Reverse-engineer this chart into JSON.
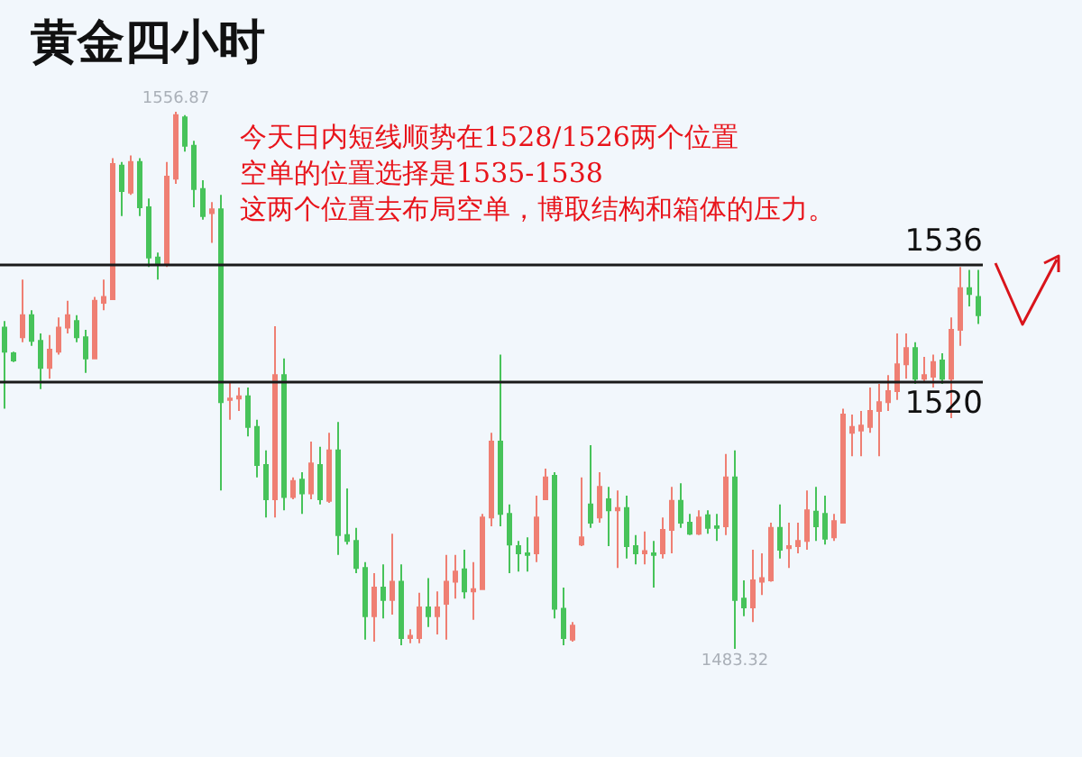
{
  "chart_data": {
    "type": "candlestick",
    "title": "黄金四小时",
    "categories": [
      null,
      null,
      null,
      null,
      null,
      null,
      null,
      null,
      null,
      null,
      null,
      null,
      null,
      null,
      null,
      null,
      null,
      null,
      null,
      null,
      null,
      null,
      null,
      null,
      null,
      null,
      null,
      null,
      null,
      null,
      null,
      null,
      null,
      null,
      null,
      null,
      null,
      null,
      null,
      null,
      null,
      null,
      null,
      null,
      null,
      null,
      null,
      null,
      null,
      null,
      null,
      null,
      null,
      null,
      null,
      null,
      null,
      null,
      null,
      null,
      null,
      null,
      null,
      null,
      null,
      null,
      null,
      null,
      null,
      null,
      null,
      null,
      null,
      null,
      null,
      null,
      null,
      null,
      null,
      null,
      null,
      null,
      null,
      null,
      null,
      null,
      null,
      null,
      null,
      null,
      null,
      null,
      null,
      null,
      null,
      null,
      null,
      null,
      null,
      null,
      null,
      null,
      null,
      null,
      null,
      null,
      null,
      null,
      null
    ],
    "ohlc": [
      [
        1527.3,
        1528.2,
        1516.2,
        1524.0
      ],
      [
        1523.8,
        1524.0,
        1522.6,
        1522.8
      ],
      [
        1526.0,
        1533.9,
        1525.3,
        1529.0
      ],
      [
        1529.0,
        1529.7,
        1524.8,
        1525.5
      ],
      [
        1525.5,
        1526.5,
        1518.9,
        1521.8
      ],
      [
        1521.8,
        1526.3,
        1520.3,
        1524.3
      ],
      [
        1524.0,
        1528.7,
        1523.6,
        1527.3
      ],
      [
        1527.3,
        1531.0,
        1526.5,
        1529.0
      ],
      [
        1528.2,
        1529.0,
        1525.3,
        1526.0
      ],
      [
        1526.0,
        1527.0,
        1521.1,
        1523.1
      ],
      [
        1523.1,
        1531.5,
        1523.1,
        1531.0
      ],
      [
        1530.7,
        1533.9,
        1529.7,
        1531.5
      ],
      [
        1531.2,
        1550.5,
        1531.2,
        1549.7
      ],
      [
        1549.5,
        1550.0,
        1542.6,
        1546.0
      ],
      [
        1545.8,
        1550.9,
        1545.5,
        1550.0
      ],
      [
        1550.0,
        1550.5,
        1542.6,
        1543.8
      ],
      [
        1543.8,
        1545.0,
        1535.6,
        1536.9
      ],
      [
        1536.9,
        1537.6,
        1533.9,
        1536.1
      ],
      [
        1536.1,
        1550.0,
        1535.6,
        1548.0
      ],
      [
        1547.7,
        1556.87,
        1547.0,
        1556.4
      ],
      [
        1556.1,
        1556.4,
        1551.4,
        1552.2
      ],
      [
        1552.2,
        1552.9,
        1543.8,
        1546.3
      ],
      [
        1546.3,
        1547.5,
        1542.1,
        1542.6
      ],
      [
        1543.0,
        1544.5,
        1538.9,
        1543.5
      ],
      [
        1543.5,
        1545.5,
        1505.0,
        1517.1
      ],
      [
        1517.4,
        1519.9,
        1514.7,
        1517.6
      ],
      [
        1517.6,
        1519.1,
        1515.9,
        1517.9
      ],
      [
        1517.9,
        1519.1,
        1512.4,
        1513.7
      ],
      [
        1513.7,
        1514.7,
        1506.8,
        1508.5
      ],
      [
        1508.5,
        1510.5,
        1501.3,
        1503.8
      ],
      [
        1503.8,
        1527.5,
        1501.3,
        1520.8
      ],
      [
        1520.8,
        1523.1,
        1502.3,
        1504.1
      ],
      [
        1504.1,
        1506.8,
        1503.8,
        1506.3
      ],
      [
        1506.5,
        1507.5,
        1501.8,
        1504.6
      ],
      [
        1504.6,
        1511.7,
        1503.8,
        1508.7
      ],
      [
        1508.5,
        1511.0,
        1503.1,
        1503.8
      ],
      [
        1503.6,
        1512.9,
        1503.3,
        1510.5
      ],
      [
        1510.5,
        1514.4,
        1496.2,
        1498.9
      ],
      [
        1498.9,
        1505.3,
        1497.6,
        1498.1
      ],
      [
        1498.1,
        1499.9,
        1493.7,
        1494.4
      ],
      [
        1494.4,
        1495.2,
        1484.6,
        1487.8
      ],
      [
        1487.8,
        1493.7,
        1484.3,
        1491.7
      ],
      [
        1491.7,
        1494.9,
        1487.5,
        1490.0
      ],
      [
        1490.0,
        1499.1,
        1488.0,
        1492.5
      ],
      [
        1492.5,
        1494.9,
        1483.8,
        1484.8
      ],
      [
        1484.8,
        1486.0,
        1484.1,
        1485.1
      ],
      [
        1484.8,
        1491.0,
        1484.1,
        1489.0
      ],
      [
        1489.0,
        1493.0,
        1486.3,
        1487.8
      ],
      [
        1487.8,
        1491.2,
        1485.3,
        1489.0
      ],
      [
        1489.5,
        1496.2,
        1484.6,
        1492.5
      ],
      [
        1492.5,
        1496.2,
        1490.2,
        1493.9
      ],
      [
        1494.2,
        1496.9,
        1490.2,
        1491.2
      ],
      [
        1491.2,
        1495.2,
        1487.3,
        1491.5
      ],
      [
        1491.5,
        1501.8,
        1491.5,
        1501.3
      ],
      [
        1501.3,
        1512.9,
        1500.1,
        1511.7
      ],
      [
        1511.7,
        1523.6,
        1500.1,
        1501.8
      ],
      [
        1501.8,
        1503.1,
        1493.7,
        1497.6
      ],
      [
        1497.4,
        1498.1,
        1493.9,
        1496.4
      ],
      [
        1496.4,
        1498.6,
        1493.9,
        1496.2
      ],
      [
        1496.4,
        1504.3,
        1495.2,
        1501.3
      ],
      [
        1503.8,
        1508.0,
        1503.8,
        1506.8
      ],
      [
        1507.0,
        1507.5,
        1487.5,
        1488.8
      ],
      [
        1488.8,
        1491.7,
        1483.8,
        1484.8
      ],
      [
        1484.6,
        1487.0,
        1484.3,
        1486.5
      ],
      [
        1497.6,
        1506.8,
        1497.4,
        1498.6
      ],
      [
        1503.1,
        1511.2,
        1499.9,
        1500.6
      ],
      [
        1501.3,
        1507.5,
        1500.6,
        1505.5
      ],
      [
        1503.8,
        1505.5,
        1497.4,
        1502.3
      ],
      [
        1502.3,
        1505.0,
        1494.4,
        1502.6
      ],
      [
        1502.6,
        1504.3,
        1495.7,
        1497.4
      ],
      [
        1497.4,
        1498.9,
        1494.9,
        1496.4
      ],
      [
        1496.4,
        1499.4,
        1494.9,
        1496.7
      ],
      [
        1496.4,
        1498.1,
        1491.7,
        1496.2
      ],
      [
        1496.4,
        1501.3,
        1495.7,
        1499.6
      ],
      [
        1499.6,
        1505.5,
        1496.4,
        1503.6
      ],
      [
        1503.6,
        1506.0,
        1499.9,
        1500.6
      ],
      [
        1500.6,
        1501.8,
        1498.9,
        1499.1
      ],
      [
        1499.1,
        1502.3,
        1498.9,
        1501.3
      ],
      [
        1501.6,
        1502.3,
        1499.1,
        1499.9
      ],
      [
        1500.1,
        1501.8,
        1498.1,
        1499.9
      ],
      [
        1500.1,
        1510.0,
        1498.9,
        1506.8
      ],
      [
        1506.8,
        1510.5,
        1483.32,
        1490.0
      ],
      [
        1490.2,
        1492.7,
        1487.8,
        1489.0
      ],
      [
        1489.0,
        1496.9,
        1487.0,
        1492.7
      ],
      [
        1492.5,
        1496.4,
        1490.7,
        1493.0
      ],
      [
        1492.7,
        1500.6,
        1492.5,
        1499.9
      ],
      [
        1499.9,
        1503.1,
        1495.7,
        1496.9
      ],
      [
        1497.1,
        1500.6,
        1494.4,
        1497.4
      ],
      [
        1497.4,
        1500.6,
        1496.4,
        1498.1
      ],
      [
        1498.1,
        1505.0,
        1496.9,
        1502.3
      ],
      [
        1502.1,
        1505.5,
        1498.1,
        1500.1
      ],
      [
        1501.8,
        1504.3,
        1497.6,
        1498.4
      ],
      [
        1498.6,
        1501.8,
        1498.1,
        1500.8
      ],
      [
        1500.6,
        1516.2,
        1500.6,
        1515.4
      ],
      [
        1512.9,
        1515.4,
        1509.7,
        1513.7
      ],
      [
        1513.2,
        1515.9,
        1509.7,
        1513.9
      ],
      [
        1513.7,
        1519.1,
        1512.9,
        1515.9
      ],
      [
        1515.9,
        1519.6,
        1509.7,
        1517.1
      ],
      [
        1517.1,
        1520.8,
        1515.9,
        1518.6
      ],
      [
        1518.6,
        1526.5,
        1517.4,
        1522.3
      ],
      [
        1522.3,
        1526.5,
        1520.3,
        1524.5
      ],
      [
        1524.5,
        1525.3,
        1519.6,
        1520.3
      ],
      [
        1520.3,
        1523.3,
        1519.9,
        1520.8
      ],
      [
        1520.6,
        1523.6,
        1519.1,
        1522.6
      ],
      [
        1522.8,
        1523.8,
        1519.6,
        1520.3
      ],
      [
        1520.3,
        1528.7,
        1514.9,
        1527.0
      ],
      [
        1527.0,
        1535.6,
        1524.8,
        1532.7
      ],
      [
        1532.7,
        1535.2,
        1530.2,
        1531.9
      ],
      [
        1531.5,
        1535.2,
        1527.8,
        1529.0
      ]
    ],
    "tick_labels": false,
    "grid": false,
    "ref_lines": [
      {
        "axis": "y",
        "value": 1536,
        "label": "1536",
        "color": "#1a1a1a"
      },
      {
        "axis": "y",
        "value": 1520,
        "label": "1520",
        "color": "#1a1a1a"
      }
    ],
    "annotations": [
      "今天日内短线顺势在1528/1526两个位置",
      "空单的位置选择是1535-1538",
      "这两个位置去布局空单，博取结构和箱体的压力。",
      {
        "text": "1556.87",
        "y": 1556.87
      },
      {
        "text": "1483.32",
        "y": 1483.32
      }
    ]
  }
}
